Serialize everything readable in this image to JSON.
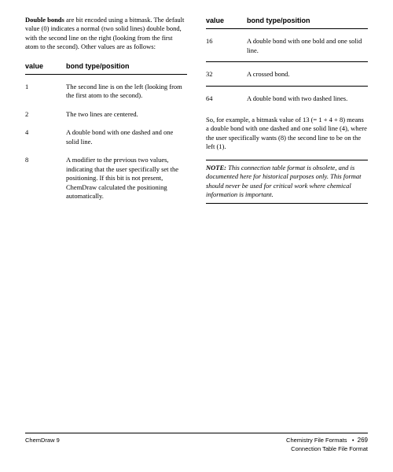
{
  "intro": {
    "bold_term": "Double bonds",
    "text_after_bold": " are bit encoded using a bitmask. The default value (0) indicates a normal (two solid lines) double bond, with the second line on the right (looking from the first atom to the second). Other values are as follows:"
  },
  "left_table": {
    "header_value": "value",
    "header_desc": "bond type/position",
    "rows": [
      {
        "value": "1",
        "desc": "The second line is on the left (looking from the first atom to the second)."
      },
      {
        "value": "2",
        "desc": "The two lines are centered."
      },
      {
        "value": "4",
        "desc": "A double bond with one dashed and one solid line."
      },
      {
        "value": "8",
        "desc": "A modifier to the previous two values, indicating that the user specifically set the positioning. If this bit is not present, ChemDraw calculated the positioning automatically."
      }
    ]
  },
  "right_table": {
    "header_value": "value",
    "header_desc": "bond type/position",
    "rows": [
      {
        "value": "16",
        "desc": "A double bond with one bold and one solid line."
      },
      {
        "value": "32",
        "desc": "A crossed bond."
      },
      {
        "value": "64",
        "desc": "A double bond with two dashed lines."
      }
    ]
  },
  "example": "So, for example, a bitmask value of 13 (= 1 + 4 + 8) means a double bond with one dashed and one solid line (4), where the user specifically wants (8) the second line to be on the left (1).",
  "note": {
    "label": "NOTE:",
    "text": "  This connection table format is obsolete, and is documented here for historical purposes only. This format should never be used for critical work where chemical information is important."
  },
  "footer": {
    "left": "ChemDraw 9",
    "right1": "Chemistry File Formats",
    "bullet": "•",
    "page": "269",
    "right2": "Connection Table File Format"
  }
}
